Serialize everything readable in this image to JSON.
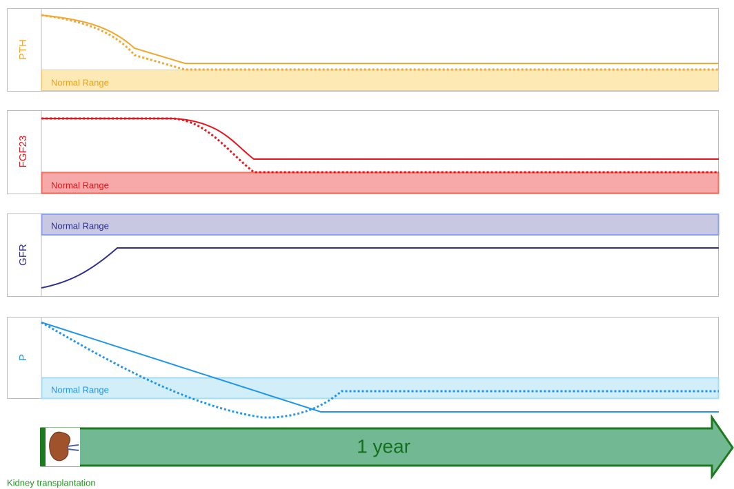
{
  "panels": [
    {
      "label": "PTH",
      "range_label": "Normal Range"
    },
    {
      "label": "FGF23",
      "range_label": "Normal Range"
    },
    {
      "label": "GFR",
      "range_label": "Normal Range"
    },
    {
      "label": "P",
      "range_label": "Normal Range"
    }
  ],
  "timeline": {
    "label": "1 year",
    "caption": "Kidney transplantation"
  }
}
